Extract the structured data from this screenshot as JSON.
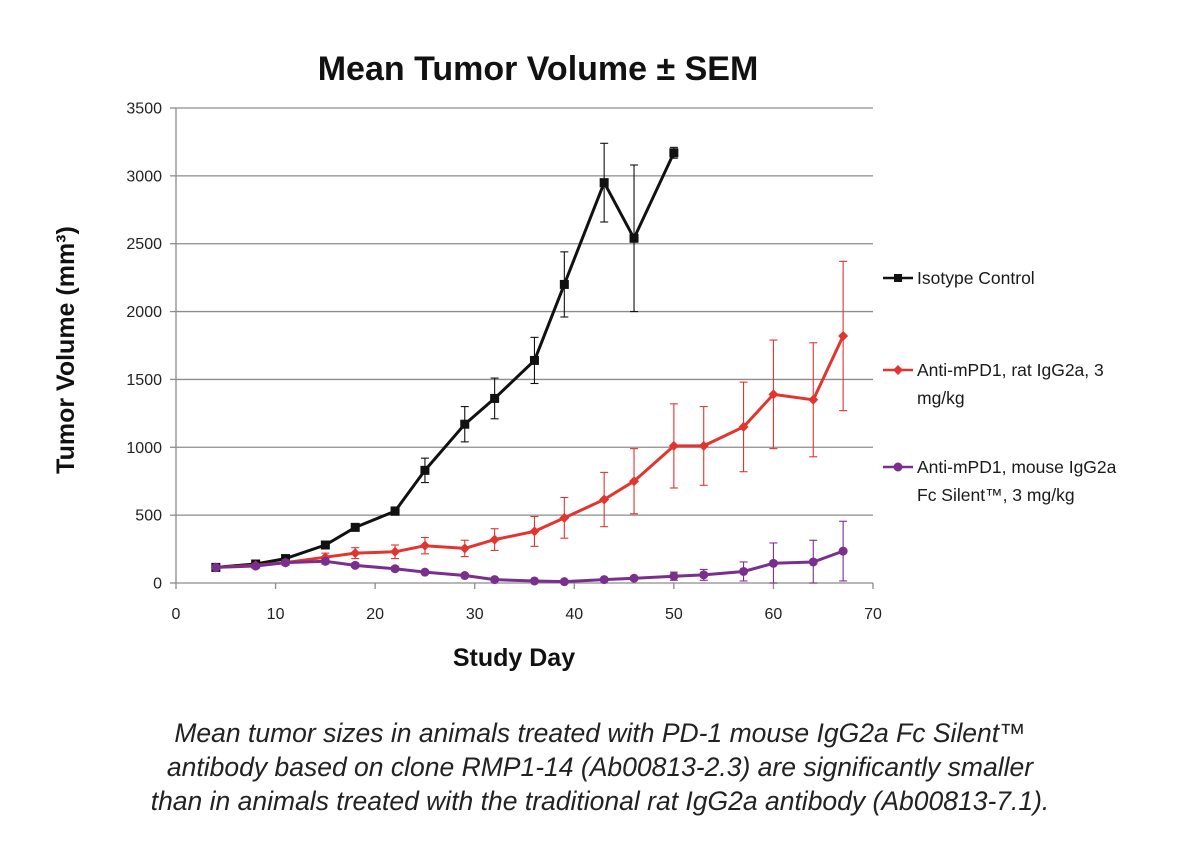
{
  "chart_data": {
    "type": "line",
    "title": "Mean Tumor Volume ± SEM",
    "xlabel": "Study Day",
    "ylabel": "Tumor Volume (mm³)",
    "xlim": [
      0,
      70
    ],
    "ylim": [
      0,
      3500
    ],
    "x_ticks": [
      0,
      10,
      20,
      30,
      40,
      50,
      60,
      70
    ],
    "y_ticks": [
      0,
      500,
      1000,
      1500,
      2000,
      2500,
      3000,
      3500
    ],
    "grid": "horizontal",
    "legend_position": "right",
    "series": [
      {
        "name": "Isotype Control",
        "color": "#111111",
        "marker": "square",
        "x": [
          4,
          8,
          11,
          15,
          18,
          22,
          25,
          29,
          32,
          36,
          39,
          43,
          46,
          50
        ],
        "y": [
          115,
          140,
          180,
          280,
          410,
          530,
          830,
          1170,
          1360,
          1640,
          2200,
          2950,
          2540,
          3170
        ],
        "error": [
          0,
          10,
          15,
          20,
          25,
          30,
          90,
          130,
          150,
          170,
          240,
          290,
          540,
          40
        ]
      },
      {
        "name": "Anti-mPD1, rat IgG2a, 3 mg/kg",
        "color": "#e23530",
        "marker": "diamond",
        "x": [
          4,
          8,
          11,
          15,
          18,
          22,
          25,
          29,
          32,
          36,
          39,
          43,
          46,
          50,
          53,
          57,
          60,
          64,
          67
        ],
        "y": [
          115,
          130,
          150,
          190,
          220,
          230,
          275,
          255,
          320,
          380,
          480,
          615,
          750,
          1010,
          1010,
          1150,
          1390,
          1350,
          1820
        ],
        "error": [
          0,
          10,
          20,
          30,
          40,
          50,
          60,
          60,
          80,
          110,
          150,
          200,
          240,
          310,
          290,
          330,
          400,
          420,
          550
        ]
      },
      {
        "name": "Anti-mPD1, mouse IgG2a Fc Silent™, 3 mg/kg",
        "color": "#7a2f8f",
        "marker": "circle",
        "x": [
          4,
          8,
          11,
          15,
          18,
          22,
          25,
          29,
          32,
          36,
          39,
          43,
          46,
          50,
          53,
          57,
          60,
          64,
          67
        ],
        "y": [
          115,
          125,
          150,
          160,
          130,
          105,
          80,
          55,
          25,
          15,
          10,
          25,
          35,
          50,
          60,
          85,
          145,
          155,
          235
        ],
        "error": [
          0,
          10,
          15,
          20,
          15,
          15,
          12,
          10,
          8,
          6,
          6,
          8,
          12,
          30,
          40,
          70,
          150,
          160,
          220
        ]
      }
    ]
  },
  "caption_lines": [
    "Mean tumor sizes in animals treated with PD-1 mouse IgG2a Fc Silent™",
    "antibody based on clone RMP1-14 (Ab00813-2.3) are significantly smaller",
    "than in animals treated with the traditional rat IgG2a antibody (Ab00813-7.1)."
  ],
  "legend": {
    "isotype_label": "Isotype Control",
    "rat_label_line1": "Anti-mPD1, rat IgG2a, 3",
    "rat_label_line2": "mg/kg",
    "mouse_label_line1": "Anti-mPD1, mouse IgG2a",
    "mouse_label_line2": "Fc Silent™, 3 mg/kg"
  }
}
